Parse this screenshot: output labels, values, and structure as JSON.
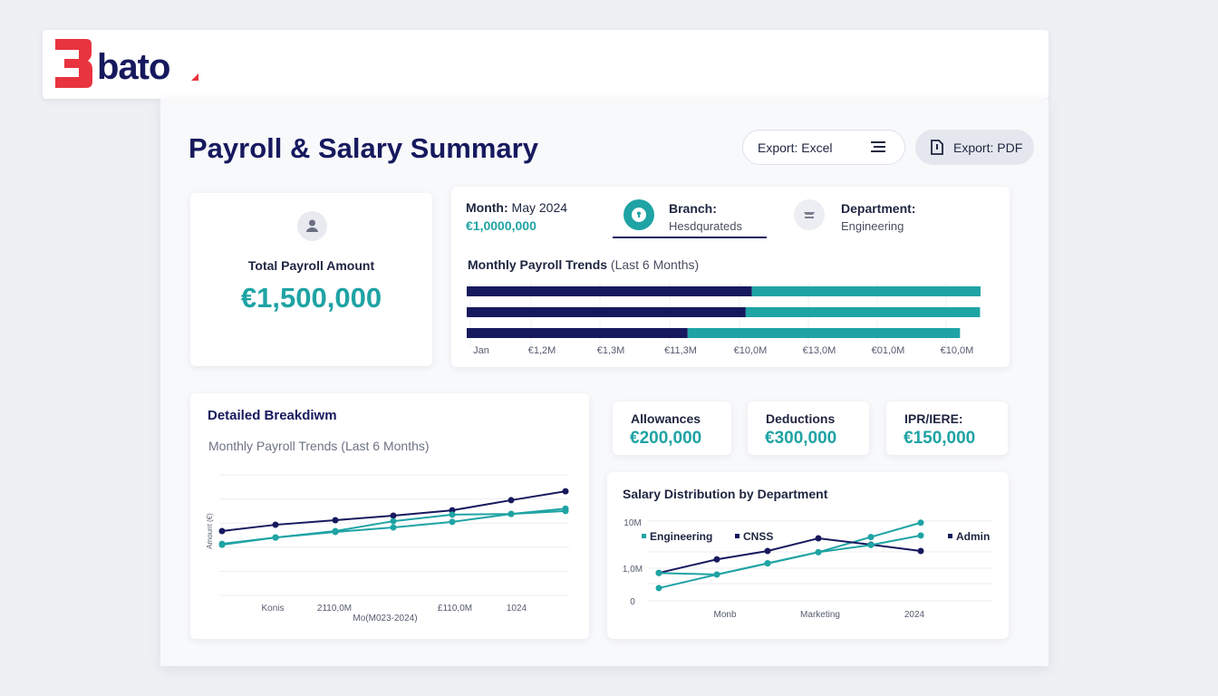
{
  "brand": {
    "name": "bato",
    "colors": {
      "red": "#e8343f",
      "navy": "#17195e",
      "teal": "#1fa3a4"
    }
  },
  "page": {
    "title": "Payroll & Salary Summary"
  },
  "toolbar": {
    "export_excel": "Export: Excel",
    "export_excel_icon": "list-icon",
    "export_pdf": "Export: PDF",
    "export_pdf_icon": "file-icon"
  },
  "total": {
    "icon": "user-icon",
    "label": "Total Payroll Amount",
    "value": "€1,500,000"
  },
  "filters": {
    "month": {
      "label": "Month:",
      "value": "May 2024",
      "amount": "€1,0000,000"
    },
    "branch": {
      "label": "Branch:",
      "value": "Hesdqurateds",
      "icon": "keyhole-icon"
    },
    "department": {
      "label": "Department:",
      "value": "Engineering",
      "icon": "building-icon"
    }
  },
  "summary_cards": [
    {
      "label": "Allowances",
      "value": "€200,000"
    },
    {
      "label": "Deductions",
      "value": "€300,000"
    },
    {
      "label": "IPR/IERE:",
      "value": "€150,000"
    }
  ],
  "chart_data": [
    {
      "type": "bar",
      "title": "Monthly Payroll Trends",
      "subtitle": "(Last 6 Months)",
      "orientation": "horizontal",
      "stacked": true,
      "tick_labels": [
        "Jan",
        "€1,2M",
        "€1,3M",
        "€11,3M",
        "€10,0M",
        "€13,0M",
        "€01,0M",
        "€10,0M"
      ],
      "xlim": [
        0,
        1
      ],
      "series": [
        {
          "color": "#17195e",
          "values": [
            0.555,
            0.543,
            0.43
          ]
        },
        {
          "color": "#1fa3a4",
          "values": [
            0.445,
            0.456,
            0.53
          ]
        }
      ]
    },
    {
      "type": "line",
      "title": "Detailed Breakdiwm",
      "subtitle": "Monthly Payroll Trends (Last 6 Months)",
      "ylabel": "Amount (€)",
      "xlabel": "Mo(M023-2024)",
      "tick_labels": [
        "Konis",
        "2110,0M",
        "£110,0M",
        "1024"
      ],
      "ylim": [
        0,
        5
      ],
      "grid": true,
      "x": [
        1,
        2,
        3,
        4,
        5,
        6,
        7
      ],
      "series": [
        {
          "color": "#17195e",
          "values": [
            2.67,
            2.93,
            3.12,
            3.31,
            3.53,
            3.95,
            4.32
          ]
        },
        {
          "color": "#1fa3a4",
          "values": [
            2.14,
            2.4,
            2.67,
            3.08,
            3.35,
            3.38,
            3.6
          ]
        },
        {
          "color": "#1fa3a4",
          "values": [
            2.1,
            2.4,
            2.63,
            2.82,
            3.05,
            3.38,
            3.5
          ]
        }
      ]
    },
    {
      "type": "line",
      "title": "Salary Distribution by Department",
      "y_tick_labels": [
        "10M",
        "1,0M",
        "0"
      ],
      "tick_labels": [
        "Monb",
        "Marketing",
        "2024"
      ],
      "ylim": [
        0,
        1
      ],
      "grid": true,
      "legend": "top",
      "x": [
        1,
        2,
        3,
        4,
        5,
        6
      ],
      "series": [
        {
          "name": "Engineering",
          "color": "#1fa3a4",
          "values": [
            0.16,
            0.33,
            0.47,
            0.61,
            0.8,
            0.98
          ]
        },
        {
          "name": "CNSS",
          "color": "#17195e",
          "values": [
            0.35,
            0.52,
            0.625,
            0.784,
            0.705,
            0.625
          ]
        },
        {
          "name": "Admin",
          "color": "#1fa3a4",
          "values": [
            0.35,
            0.33,
            0.47,
            0.61,
            0.7,
            0.82
          ]
        }
      ]
    }
  ]
}
